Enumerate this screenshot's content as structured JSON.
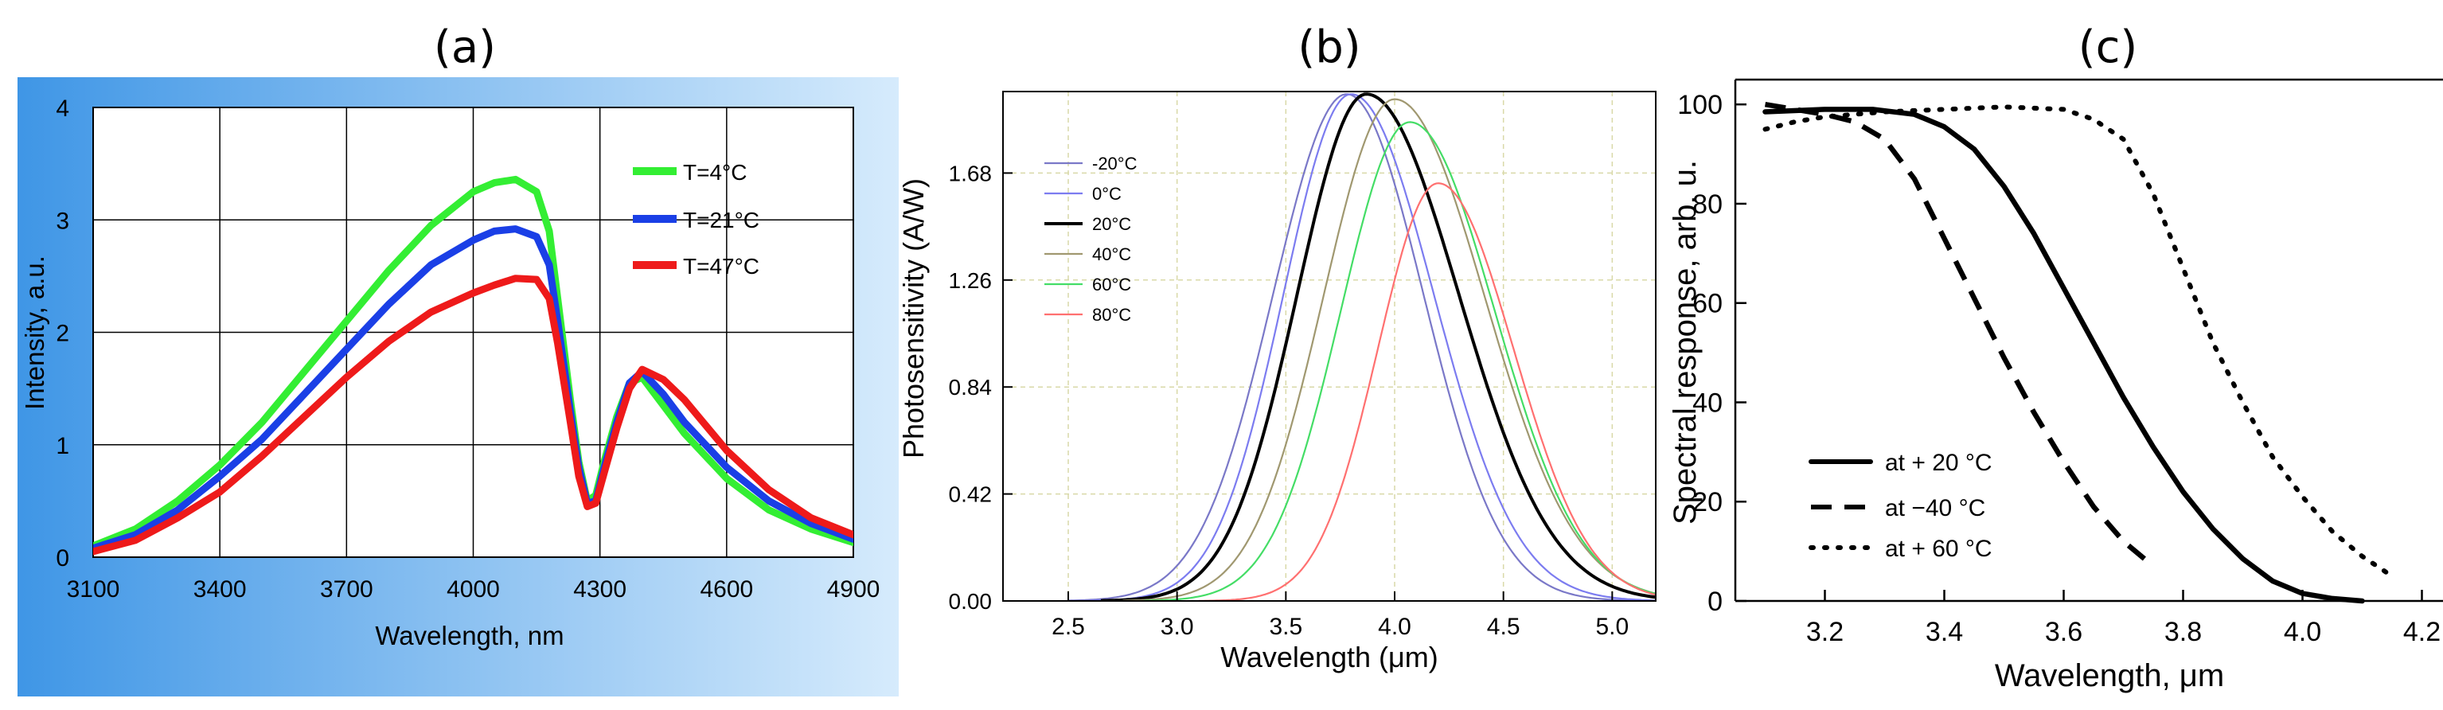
{
  "panel_labels": [
    "(a)",
    "(b)",
    "(c)"
  ],
  "colors": {
    "panel_a_bg_start": "#3f96e6",
    "panel_a_bg_end": "#d6ebfc"
  },
  "chart_data": [
    {
      "type": "line",
      "title": "(a)",
      "xlabel": "Wavelength, nm",
      "ylabel": "Intensity, a.u.",
      "xlim": [
        3100,
        4900
      ],
      "ylim": [
        0,
        4
      ],
      "xticks": [
        3100,
        3400,
        3700,
        4000,
        4300,
        4600,
        4900
      ],
      "yticks": [
        0,
        1,
        2,
        3,
        4
      ],
      "grid": true,
      "legend_position": "top-right",
      "series": [
        {
          "name": "T=4°C",
          "color": "#33ee33",
          "x": [
            3100,
            3200,
            3300,
            3400,
            3500,
            3600,
            3700,
            3800,
            3900,
            4000,
            4050,
            4100,
            4150,
            4180,
            4200,
            4230,
            4250,
            4270,
            4290,
            4310,
            4340,
            4370,
            4400,
            4450,
            4500,
            4600,
            4700,
            4800,
            4900
          ],
          "y": [
            0.1,
            0.25,
            0.5,
            0.82,
            1.2,
            1.65,
            2.1,
            2.55,
            2.95,
            3.25,
            3.33,
            3.36,
            3.25,
            2.9,
            2.3,
            1.4,
            0.85,
            0.5,
            0.55,
            0.85,
            1.25,
            1.55,
            1.6,
            1.35,
            1.1,
            0.7,
            0.42,
            0.25,
            0.13
          ]
        },
        {
          "name": "T=21°C",
          "color": "#1a3fe6",
          "x": [
            3100,
            3200,
            3300,
            3400,
            3500,
            3600,
            3700,
            3800,
            3900,
            4000,
            4050,
            4100,
            4150,
            4180,
            4200,
            4230,
            4250,
            4270,
            4290,
            4310,
            4340,
            4370,
            4400,
            4450,
            4500,
            4600,
            4700,
            4800,
            4900
          ],
          "y": [
            0.08,
            0.2,
            0.42,
            0.72,
            1.05,
            1.45,
            1.85,
            2.25,
            2.6,
            2.82,
            2.9,
            2.92,
            2.85,
            2.6,
            2.1,
            1.3,
            0.8,
            0.48,
            0.5,
            0.8,
            1.2,
            1.55,
            1.65,
            1.45,
            1.2,
            0.8,
            0.5,
            0.3,
            0.16
          ]
        },
        {
          "name": "T=47°C",
          "color": "#ee1a1a",
          "x": [
            3100,
            3200,
            3300,
            3400,
            3500,
            3600,
            3700,
            3800,
            3900,
            4000,
            4050,
            4100,
            4150,
            4180,
            4200,
            4230,
            4250,
            4270,
            4290,
            4310,
            4340,
            4370,
            4400,
            4450,
            4500,
            4600,
            4700,
            4800,
            4900
          ],
          "y": [
            0.05,
            0.15,
            0.35,
            0.58,
            0.9,
            1.25,
            1.6,
            1.92,
            2.18,
            2.35,
            2.42,
            2.48,
            2.47,
            2.3,
            1.9,
            1.2,
            0.72,
            0.45,
            0.48,
            0.75,
            1.15,
            1.5,
            1.67,
            1.58,
            1.4,
            0.95,
            0.6,
            0.35,
            0.2
          ]
        }
      ]
    },
    {
      "type": "line",
      "title": "(b)",
      "xlabel": "Wavelength (μm)",
      "ylabel": "Photosensitivity (A/W)",
      "xlim": [
        2.2,
        5.2
      ],
      "ylim": [
        0,
        2.0
      ],
      "xticks": [
        "2.5",
        "3.0",
        "3.5",
        "4.0",
        "4.5",
        "5.0"
      ],
      "yticks": [
        "0.00",
        "0.42",
        "0.84",
        "1.26",
        "1.68"
      ],
      "grid": true,
      "legend_position": "top-left",
      "series": [
        {
          "name": "-20°C",
          "color": "#7a78c8",
          "peak_x": 3.78,
          "peak_y": 1.99,
          "x_start": 2.8,
          "x_end": 4.8
        },
        {
          "name": "0°C",
          "color": "#7c7cf0",
          "peak_x": 3.8,
          "peak_y": 1.99,
          "x_start": 2.9,
          "x_end": 4.9
        },
        {
          "name": "20°C",
          "color": "#000000",
          "peak_x": 3.87,
          "peak_y": 1.99,
          "x_start": 2.95,
          "x_end": 5.1
        },
        {
          "name": "40°C",
          "color": "#a09870",
          "peak_x": 4.0,
          "peak_y": 1.97,
          "x_start": 3.05,
          "x_end": 5.2
        },
        {
          "name": "60°C",
          "color": "#44dd66",
          "peak_x": 4.07,
          "peak_y": 1.88,
          "x_start": 3.15,
          "x_end": 5.2
        },
        {
          "name": "80°C",
          "color": "#ff7070",
          "peak_x": 4.2,
          "peak_y": 1.64,
          "x_start": 3.4,
          "x_end": 5.2
        }
      ]
    },
    {
      "type": "line",
      "title": "(c)",
      "xlabel": "Wavelength, μm",
      "ylabel": "Spectral response, arb. u.",
      "xlim": [
        3.05,
        4.25
      ],
      "ylim": [
        0,
        105
      ],
      "xticks": [
        "3.2",
        "3.4",
        "3.6",
        "3.8",
        "4.0",
        "4.2"
      ],
      "yticks": [
        "0",
        "20",
        "40",
        "60",
        "80",
        "100"
      ],
      "grid": false,
      "legend_position": "bottom-left",
      "series": [
        {
          "name": "at + 20 °C",
          "style": "solid",
          "x": [
            3.1,
            3.2,
            3.28,
            3.35,
            3.4,
            3.45,
            3.5,
            3.55,
            3.6,
            3.65,
            3.7,
            3.75,
            3.8,
            3.85,
            3.9,
            3.95,
            4.0,
            4.05,
            4.1
          ],
          "y": [
            98.5,
            99,
            99,
            98,
            95.5,
            91,
            83.5,
            74,
            63,
            52,
            41,
            31,
            22,
            14.5,
            8.5,
            4,
            1.5,
            0.5,
            0
          ]
        },
        {
          "name": "at −40 °C",
          "style": "dashed",
          "x": [
            3.1,
            3.15,
            3.2,
            3.25,
            3.3,
            3.35,
            3.4,
            3.45,
            3.5,
            3.55,
            3.6,
            3.65,
            3.7,
            3.75
          ],
          "y": [
            100,
            99,
            98,
            96.5,
            93,
            85,
            73,
            61,
            49,
            38,
            28,
            19,
            12,
            7
          ]
        },
        {
          "name": "at + 60 °C",
          "style": "dotted",
          "x": [
            3.1,
            3.15,
            3.2,
            3.3,
            3.4,
            3.5,
            3.6,
            3.65,
            3.7,
            3.75,
            3.8,
            3.85,
            3.9,
            3.95,
            4.0,
            4.05,
            4.1,
            4.15
          ],
          "y": [
            95,
            96.5,
            97.5,
            98.5,
            99,
            99.5,
            99,
            97,
            93,
            82,
            67,
            52,
            40,
            29,
            21,
            14,
            9,
            5
          ]
        }
      ]
    }
  ]
}
